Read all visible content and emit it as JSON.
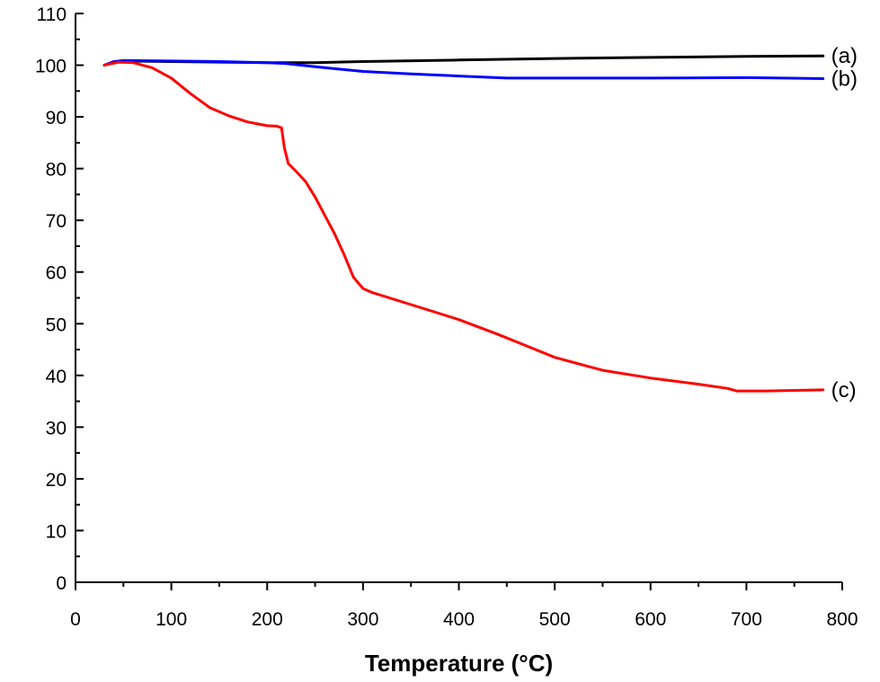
{
  "chart_data": {
    "type": "line",
    "title": "",
    "xlabel": "Temperature (°C)",
    "ylabel": "",
    "xlim": [
      0,
      800
    ],
    "ylim": [
      0,
      110
    ],
    "xticks": [
      0,
      100,
      200,
      300,
      400,
      500,
      600,
      700,
      800
    ],
    "yticks": [
      0,
      10,
      20,
      30,
      40,
      50,
      60,
      70,
      80,
      90,
      100,
      110
    ],
    "grid": false,
    "series": [
      {
        "name": "(a)",
        "color": "#000000",
        "points": [
          [
            30,
            100
          ],
          [
            40,
            100.6
          ],
          [
            50,
            100.8
          ],
          [
            100,
            100.7
          ],
          [
            200,
            100.5
          ],
          [
            250,
            100.5
          ],
          [
            300,
            100.7
          ],
          [
            400,
            101.0
          ],
          [
            500,
            101.3
          ],
          [
            600,
            101.5
          ],
          [
            700,
            101.7
          ],
          [
            780,
            101.8
          ]
        ]
      },
      {
        "name": "(b)",
        "color": "#0000ff",
        "points": [
          [
            30,
            100
          ],
          [
            40,
            100.7
          ],
          [
            50,
            100.9
          ],
          [
            100,
            100.8
          ],
          [
            150,
            100.7
          ],
          [
            200,
            100.5
          ],
          [
            220,
            100.3
          ],
          [
            250,
            99.7
          ],
          [
            300,
            98.8
          ],
          [
            350,
            98.3
          ],
          [
            400,
            97.9
          ],
          [
            450,
            97.5
          ],
          [
            500,
            97.5
          ],
          [
            600,
            97.5
          ],
          [
            700,
            97.6
          ],
          [
            780,
            97.4
          ]
        ]
      },
      {
        "name": "(c)",
        "color": "#ff0000",
        "points": [
          [
            30,
            100
          ],
          [
            45,
            100.6
          ],
          [
            60,
            100.5
          ],
          [
            80,
            99.5
          ],
          [
            100,
            97.5
          ],
          [
            120,
            94.5
          ],
          [
            140,
            91.8
          ],
          [
            160,
            90.2
          ],
          [
            180,
            89.0
          ],
          [
            200,
            88.3
          ],
          [
            210,
            88.2
          ],
          [
            215,
            87.9
          ],
          [
            218,
            84.0
          ],
          [
            222,
            81.0
          ],
          [
            230,
            79.5
          ],
          [
            240,
            77.5
          ],
          [
            250,
            74.5
          ],
          [
            260,
            71.0
          ],
          [
            270,
            67.5
          ],
          [
            280,
            63.5
          ],
          [
            290,
            59.0
          ],
          [
            300,
            56.8
          ],
          [
            310,
            56.0
          ],
          [
            350,
            53.7
          ],
          [
            400,
            50.8
          ],
          [
            440,
            48.0
          ],
          [
            480,
            45.0
          ],
          [
            500,
            43.5
          ],
          [
            550,
            41.0
          ],
          [
            600,
            39.5
          ],
          [
            650,
            38.3
          ],
          [
            680,
            37.5
          ],
          [
            690,
            37.0
          ],
          [
            720,
            37.0
          ],
          [
            780,
            37.2
          ]
        ]
      }
    ]
  }
}
